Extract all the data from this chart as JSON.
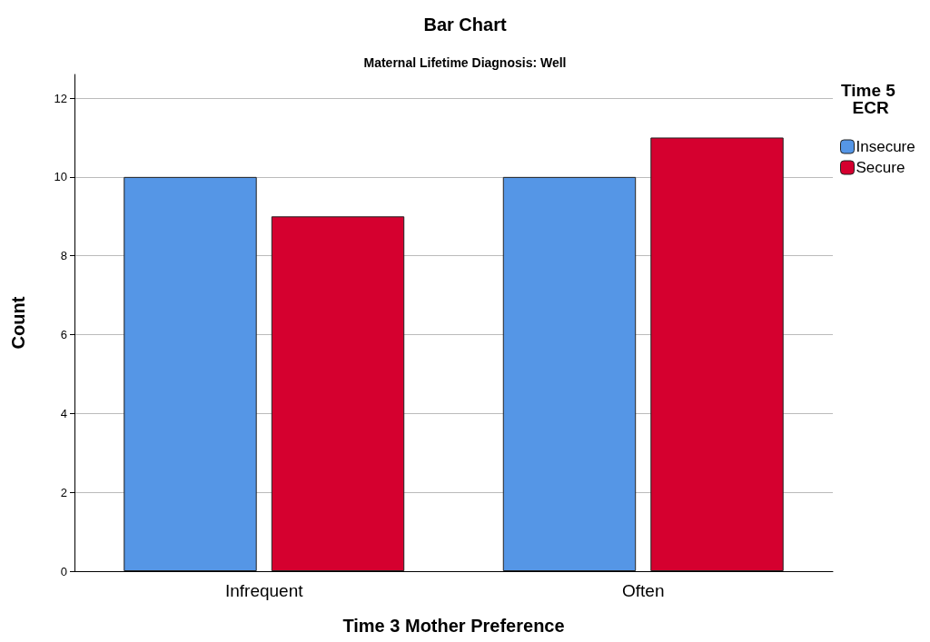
{
  "chart_data": {
    "type": "bar",
    "title": "Bar Chart",
    "subtitle": "Maternal Lifetime Diagnosis: Well",
    "xlabel": "Time 3 Mother Preference",
    "ylabel": "Count",
    "legend_title": "Time 5 ECR",
    "categories": [
      "Infrequent",
      "Often"
    ],
    "series": [
      {
        "name": "Insecure",
        "color": "#5596e6",
        "values": [
          10,
          10
        ]
      },
      {
        "name": "Secure",
        "color": "#d5002f",
        "values": [
          9,
          11
        ]
      }
    ],
    "ylim": [
      0,
      12.6
    ],
    "yticks": [
      0,
      2,
      4,
      6,
      8,
      10,
      12
    ],
    "grid": "y",
    "legend": "top right"
  }
}
